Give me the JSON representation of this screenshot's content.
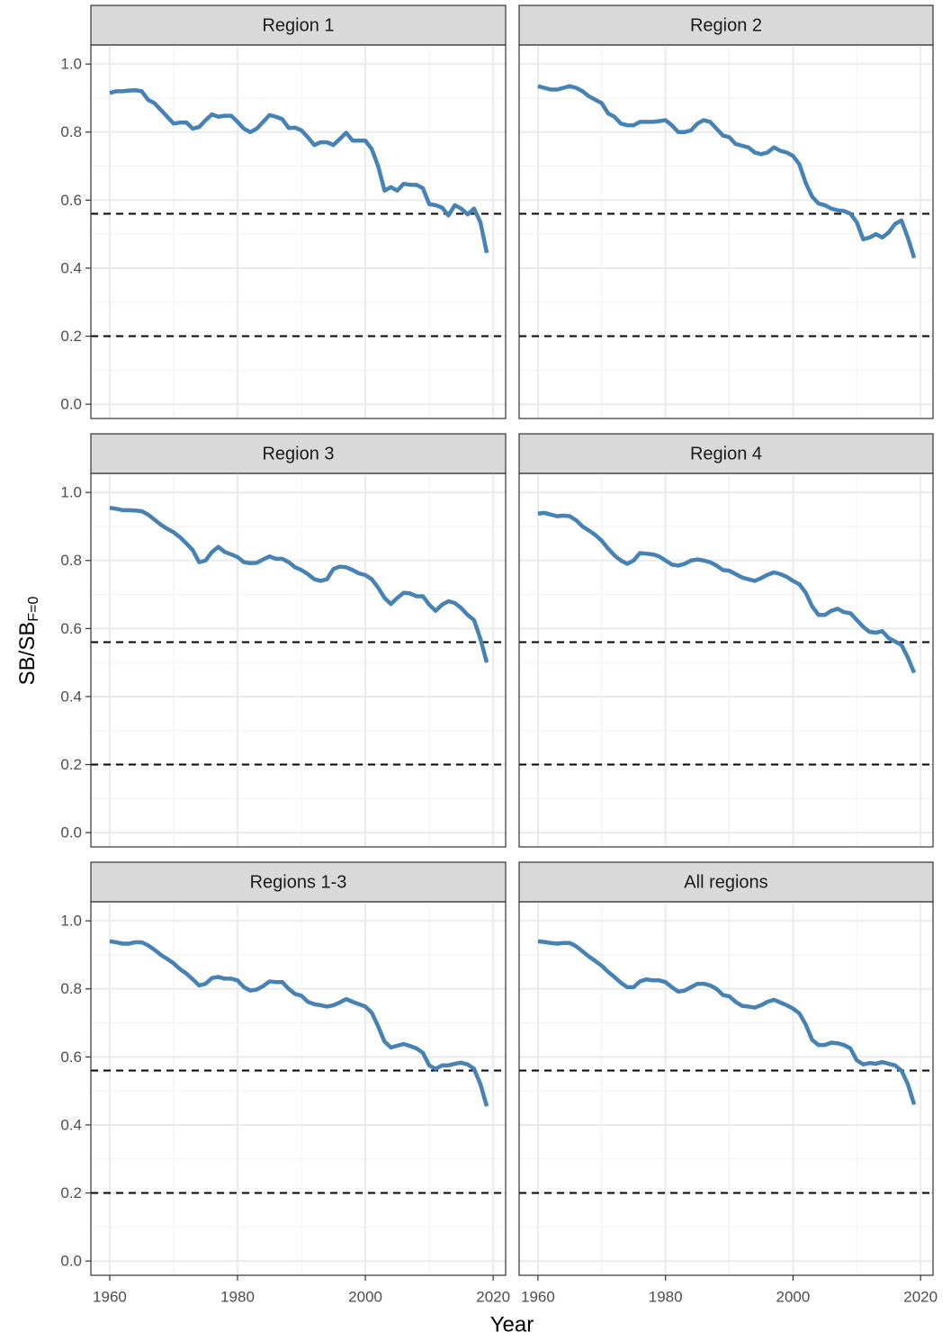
{
  "chart_data": [
    {
      "type": "line",
      "title": "Region 1",
      "color": "#4682b4",
      "x": [
        1960,
        1961,
        1962,
        1963,
        1964,
        1965,
        1966,
        1967,
        1968,
        1969,
        1970,
        1971,
        1972,
        1973,
        1974,
        1975,
        1976,
        1977,
        1978,
        1979,
        1980,
        1981,
        1982,
        1983,
        1984,
        1985,
        1986,
        1987,
        1988,
        1989,
        1990,
        1991,
        1992,
        1993,
        1994,
        1995,
        1996,
        1997,
        1998,
        1999,
        2000,
        2001,
        2002,
        2003,
        2004,
        2005,
        2006,
        2007,
        2008,
        2009,
        2010,
        2011,
        2012,
        2013,
        2014,
        2015,
        2016,
        2017,
        2018,
        2019
      ],
      "values": [
        0.915,
        0.92,
        0.92,
        0.922,
        0.923,
        0.92,
        0.895,
        0.885,
        0.865,
        0.845,
        0.825,
        0.828,
        0.828,
        0.81,
        0.815,
        0.835,
        0.852,
        0.845,
        0.848,
        0.848,
        0.83,
        0.81,
        0.8,
        0.81,
        0.83,
        0.85,
        0.845,
        0.838,
        0.812,
        0.813,
        0.805,
        0.785,
        0.762,
        0.77,
        0.77,
        0.762,
        0.78,
        0.798,
        0.775,
        0.775,
        0.775,
        0.75,
        0.7,
        0.628,
        0.638,
        0.628,
        0.648,
        0.645,
        0.645,
        0.635,
        0.588,
        0.585,
        0.578,
        0.555,
        0.585,
        0.575,
        0.558,
        0.575,
        0.535,
        0.445
      ],
      "xlim": [
        1957.05,
        2021.95
      ],
      "ylim": [
        -0.042,
        1.056
      ],
      "xticks": [
        1960,
        1980,
        2000,
        2020
      ],
      "yticks": [
        {
          "value": 0,
          "label": "0.0"
        },
        0.2,
        0.4,
        0.6,
        0.8,
        {
          "value": 1,
          "label": "1.0"
        }
      ],
      "xminor": [
        1970,
        1990,
        2010
      ],
      "yminor": [
        0.1,
        0.3,
        0.5,
        0.7,
        0.9
      ],
      "hlines": [
        0.56,
        0.2
      ]
    },
    {
      "type": "line",
      "title": "Region 2",
      "color": "#4682b4",
      "x": [
        1960,
        1961,
        1962,
        1963,
        1964,
        1965,
        1966,
        1967,
        1968,
        1969,
        1970,
        1971,
        1972,
        1973,
        1974,
        1975,
        1976,
        1977,
        1978,
        1979,
        1980,
        1981,
        1982,
        1983,
        1984,
        1985,
        1986,
        1987,
        1988,
        1989,
        1990,
        1991,
        1992,
        1993,
        1994,
        1995,
        1996,
        1997,
        1998,
        1999,
        2000,
        2001,
        2002,
        2003,
        2004,
        2005,
        2006,
        2007,
        2008,
        2009,
        2010,
        2011,
        2012,
        2013,
        2014,
        2015,
        2016,
        2017,
        2018,
        2019
      ],
      "values": [
        0.935,
        0.93,
        0.925,
        0.925,
        0.93,
        0.935,
        0.93,
        0.92,
        0.905,
        0.895,
        0.885,
        0.855,
        0.845,
        0.825,
        0.82,
        0.82,
        0.83,
        0.83,
        0.83,
        0.832,
        0.835,
        0.82,
        0.8,
        0.8,
        0.805,
        0.825,
        0.835,
        0.83,
        0.81,
        0.79,
        0.785,
        0.765,
        0.76,
        0.755,
        0.74,
        0.735,
        0.74,
        0.755,
        0.745,
        0.74,
        0.73,
        0.705,
        0.65,
        0.61,
        0.59,
        0.585,
        0.575,
        0.57,
        0.568,
        0.56,
        0.535,
        0.485,
        0.49,
        0.5,
        0.49,
        0.505,
        0.53,
        0.54,
        0.49,
        0.43
      ],
      "xlim": [
        1957.05,
        2021.95
      ],
      "ylim": [
        -0.042,
        1.056
      ],
      "xticks": [
        1960,
        1980,
        2000,
        2020
      ],
      "yticks": [
        {
          "value": 0,
          "label": "0.0"
        },
        0.2,
        0.4,
        0.6,
        0.8,
        {
          "value": 1,
          "label": "1.0"
        }
      ],
      "xminor": [
        1970,
        1990,
        2010
      ],
      "yminor": [
        0.1,
        0.3,
        0.5,
        0.7,
        0.9
      ],
      "hlines": [
        0.56,
        0.2
      ]
    },
    {
      "type": "line",
      "title": "Region 3",
      "color": "#4682b4",
      "x": [
        1960,
        1961,
        1962,
        1963,
        1964,
        1965,
        1966,
        1967,
        1968,
        1969,
        1970,
        1971,
        1972,
        1973,
        1974,
        1975,
        1976,
        1977,
        1978,
        1979,
        1980,
        1981,
        1982,
        1983,
        1984,
        1985,
        1986,
        1987,
        1988,
        1989,
        1990,
        1991,
        1992,
        1993,
        1994,
        1995,
        1996,
        1997,
        1998,
        1999,
        2000,
        2001,
        2002,
        2003,
        2004,
        2005,
        2006,
        2007,
        2008,
        2009,
        2010,
        2011,
        2012,
        2013,
        2014,
        2015,
        2016,
        2017,
        2018,
        2019
      ],
      "values": [
        0.955,
        0.952,
        0.948,
        0.948,
        0.947,
        0.945,
        0.935,
        0.92,
        0.905,
        0.893,
        0.883,
        0.868,
        0.85,
        0.83,
        0.795,
        0.8,
        0.825,
        0.84,
        0.825,
        0.818,
        0.81,
        0.795,
        0.792,
        0.793,
        0.803,
        0.812,
        0.805,
        0.805,
        0.795,
        0.78,
        0.772,
        0.76,
        0.745,
        0.74,
        0.745,
        0.775,
        0.782,
        0.78,
        0.772,
        0.762,
        0.757,
        0.745,
        0.72,
        0.69,
        0.672,
        0.69,
        0.705,
        0.703,
        0.695,
        0.695,
        0.67,
        0.652,
        0.67,
        0.68,
        0.675,
        0.66,
        0.64,
        0.625,
        0.57,
        0.5
      ],
      "xlim": [
        1957.05,
        2021.95
      ],
      "ylim": [
        -0.042,
        1.056
      ],
      "xticks": [
        1960,
        1980,
        2000,
        2020
      ],
      "yticks": [
        {
          "value": 0,
          "label": "0.0"
        },
        0.2,
        0.4,
        0.6,
        0.8,
        {
          "value": 1,
          "label": "1.0"
        }
      ],
      "xminor": [
        1970,
        1990,
        2010
      ],
      "yminor": [
        0.1,
        0.3,
        0.5,
        0.7,
        0.9
      ],
      "hlines": [
        0.56,
        0.2
      ]
    },
    {
      "type": "line",
      "title": "Region 4",
      "color": "#4682b4",
      "x": [
        1960,
        1961,
        1962,
        1963,
        1964,
        1965,
        1966,
        1967,
        1968,
        1969,
        1970,
        1971,
        1972,
        1973,
        1974,
        1975,
        1976,
        1977,
        1978,
        1979,
        1980,
        1981,
        1982,
        1983,
        1984,
        1985,
        1986,
        1987,
        1988,
        1989,
        1990,
        1991,
        1992,
        1993,
        1994,
        1995,
        1996,
        1997,
        1998,
        1999,
        2000,
        2001,
        2002,
        2003,
        2004,
        2005,
        2006,
        2007,
        2008,
        2009,
        2010,
        2011,
        2012,
        2013,
        2014,
        2015,
        2016,
        2017,
        2018,
        2019
      ],
      "values": [
        0.938,
        0.94,
        0.935,
        0.93,
        0.932,
        0.93,
        0.918,
        0.9,
        0.888,
        0.875,
        0.858,
        0.835,
        0.815,
        0.8,
        0.79,
        0.8,
        0.822,
        0.82,
        0.818,
        0.812,
        0.8,
        0.788,
        0.785,
        0.79,
        0.8,
        0.803,
        0.8,
        0.795,
        0.785,
        0.772,
        0.77,
        0.76,
        0.75,
        0.745,
        0.74,
        0.748,
        0.758,
        0.765,
        0.76,
        0.752,
        0.74,
        0.73,
        0.705,
        0.665,
        0.64,
        0.64,
        0.652,
        0.658,
        0.648,
        0.645,
        0.625,
        0.605,
        0.59,
        0.588,
        0.592,
        0.572,
        0.562,
        0.552,
        0.515,
        0.47
      ],
      "xlim": [
        1957.05,
        2021.95
      ],
      "ylim": [
        -0.042,
        1.056
      ],
      "xticks": [
        1960,
        1980,
        2000,
        2020
      ],
      "yticks": [
        {
          "value": 0,
          "label": "0.0"
        },
        0.2,
        0.4,
        0.6,
        0.8,
        {
          "value": 1,
          "label": "1.0"
        }
      ],
      "xminor": [
        1970,
        1990,
        2010
      ],
      "yminor": [
        0.1,
        0.3,
        0.5,
        0.7,
        0.9
      ],
      "hlines": [
        0.56,
        0.2
      ]
    },
    {
      "type": "line",
      "title": "Regions 1-3",
      "color": "#4682b4",
      "x": [
        1960,
        1961,
        1962,
        1963,
        1964,
        1965,
        1966,
        1967,
        1968,
        1969,
        1970,
        1971,
        1972,
        1973,
        1974,
        1975,
        1976,
        1977,
        1978,
        1979,
        1980,
        1981,
        1982,
        1983,
        1984,
        1985,
        1986,
        1987,
        1988,
        1989,
        1990,
        1991,
        1992,
        1993,
        1994,
        1995,
        1996,
        1997,
        1998,
        1999,
        2000,
        2001,
        2002,
        2003,
        2004,
        2005,
        2006,
        2007,
        2008,
        2009,
        2010,
        2011,
        2012,
        2013,
        2014,
        2015,
        2016,
        2017,
        2018,
        2019
      ],
      "values": [
        0.94,
        0.937,
        0.933,
        0.933,
        0.937,
        0.937,
        0.928,
        0.915,
        0.9,
        0.888,
        0.875,
        0.858,
        0.845,
        0.828,
        0.81,
        0.815,
        0.832,
        0.835,
        0.83,
        0.83,
        0.825,
        0.805,
        0.795,
        0.798,
        0.808,
        0.822,
        0.82,
        0.82,
        0.8,
        0.785,
        0.78,
        0.762,
        0.755,
        0.752,
        0.748,
        0.752,
        0.76,
        0.77,
        0.762,
        0.755,
        0.748,
        0.73,
        0.69,
        0.645,
        0.628,
        0.633,
        0.638,
        0.632,
        0.625,
        0.612,
        0.575,
        0.565,
        0.575,
        0.575,
        0.58,
        0.583,
        0.578,
        0.565,
        0.52,
        0.455
      ],
      "xlim": [
        1957.05,
        2021.95
      ],
      "ylim": [
        -0.042,
        1.056
      ],
      "xticks": [
        1960,
        1980,
        2000,
        2020
      ],
      "yticks": [
        {
          "value": 0,
          "label": "0.0"
        },
        0.2,
        0.4,
        0.6,
        0.8,
        {
          "value": 1,
          "label": "1.0"
        }
      ],
      "xminor": [
        1970,
        1990,
        2010
      ],
      "yminor": [
        0.1,
        0.3,
        0.5,
        0.7,
        0.9
      ],
      "hlines": [
        0.56,
        0.2
      ]
    },
    {
      "type": "line",
      "title": "All regions",
      "color": "#4682b4",
      "x": [
        1960,
        1961,
        1962,
        1963,
        1964,
        1965,
        1966,
        1967,
        1968,
        1969,
        1970,
        1971,
        1972,
        1973,
        1974,
        1975,
        1976,
        1977,
        1978,
        1979,
        1980,
        1981,
        1982,
        1983,
        1984,
        1985,
        1986,
        1987,
        1988,
        1989,
        1990,
        1991,
        1992,
        1993,
        1994,
        1995,
        1996,
        1997,
        1998,
        1999,
        2000,
        2001,
        2002,
        2003,
        2004,
        2005,
        2006,
        2007,
        2008,
        2009,
        2010,
        2011,
        2012,
        2013,
        2014,
        2015,
        2016,
        2017,
        2018,
        2019
      ],
      "values": [
        0.94,
        0.938,
        0.935,
        0.933,
        0.935,
        0.935,
        0.925,
        0.91,
        0.895,
        0.882,
        0.868,
        0.85,
        0.835,
        0.818,
        0.805,
        0.805,
        0.822,
        0.828,
        0.825,
        0.825,
        0.82,
        0.805,
        0.792,
        0.795,
        0.805,
        0.815,
        0.815,
        0.81,
        0.8,
        0.782,
        0.778,
        0.762,
        0.75,
        0.748,
        0.745,
        0.752,
        0.762,
        0.768,
        0.76,
        0.752,
        0.742,
        0.728,
        0.695,
        0.65,
        0.635,
        0.635,
        0.642,
        0.64,
        0.635,
        0.625,
        0.59,
        0.578,
        0.582,
        0.58,
        0.585,
        0.58,
        0.575,
        0.56,
        0.52,
        0.46
      ],
      "xlim": [
        1957.05,
        2021.95
      ],
      "ylim": [
        -0.042,
        1.056
      ],
      "xticks": [
        1960,
        1980,
        2000,
        2020
      ],
      "yticks": [
        {
          "value": 0,
          "label": "0.0"
        },
        0.2,
        0.4,
        0.6,
        0.8,
        {
          "value": 1,
          "label": "1.0"
        }
      ],
      "xminor": [
        1970,
        1990,
        2010
      ],
      "yminor": [
        0.1,
        0.3,
        0.5,
        0.7,
        0.9
      ],
      "hlines": [
        0.56,
        0.2
      ]
    }
  ],
  "xlabel": "Year",
  "ylabel": {
    "main": "SB/SB",
    "sub": "F=0"
  }
}
